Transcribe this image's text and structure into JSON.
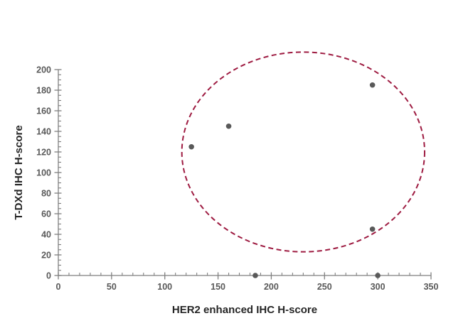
{
  "chart_data": {
    "type": "scatter",
    "title": "",
    "xlabel": "HER2 enhanced IHC H-score",
    "ylabel": "T-DXd IHC H-score",
    "xlim": [
      0,
      350
    ],
    "ylim": [
      0,
      200
    ],
    "x_major_ticks": [
      0,
      50,
      100,
      150,
      200,
      250,
      300,
      350
    ],
    "x_minor_step": 10,
    "y_major_ticks": [
      0,
      20,
      40,
      60,
      80,
      100,
      120,
      140,
      160,
      180,
      200
    ],
    "y_minor_step": 5,
    "grid": false,
    "legend": "none",
    "points": [
      {
        "x": 125,
        "y": 125
      },
      {
        "x": 160,
        "y": 145
      },
      {
        "x": 185,
        "y": 0
      },
      {
        "x": 295,
        "y": 185
      },
      {
        "x": 295,
        "y": 45
      },
      {
        "x": 300,
        "y": 0
      }
    ],
    "ellipse_annotation": {
      "cx": 230,
      "cy": 120,
      "rx": 114,
      "ry": 97,
      "style": "dashed"
    },
    "colors": {
      "marker": "#595959",
      "ellipse": "#9E1B41",
      "axis": "#7F7F7F",
      "tick_label": "#595959",
      "axis_title": "#262626",
      "background": "#ffffff"
    }
  }
}
